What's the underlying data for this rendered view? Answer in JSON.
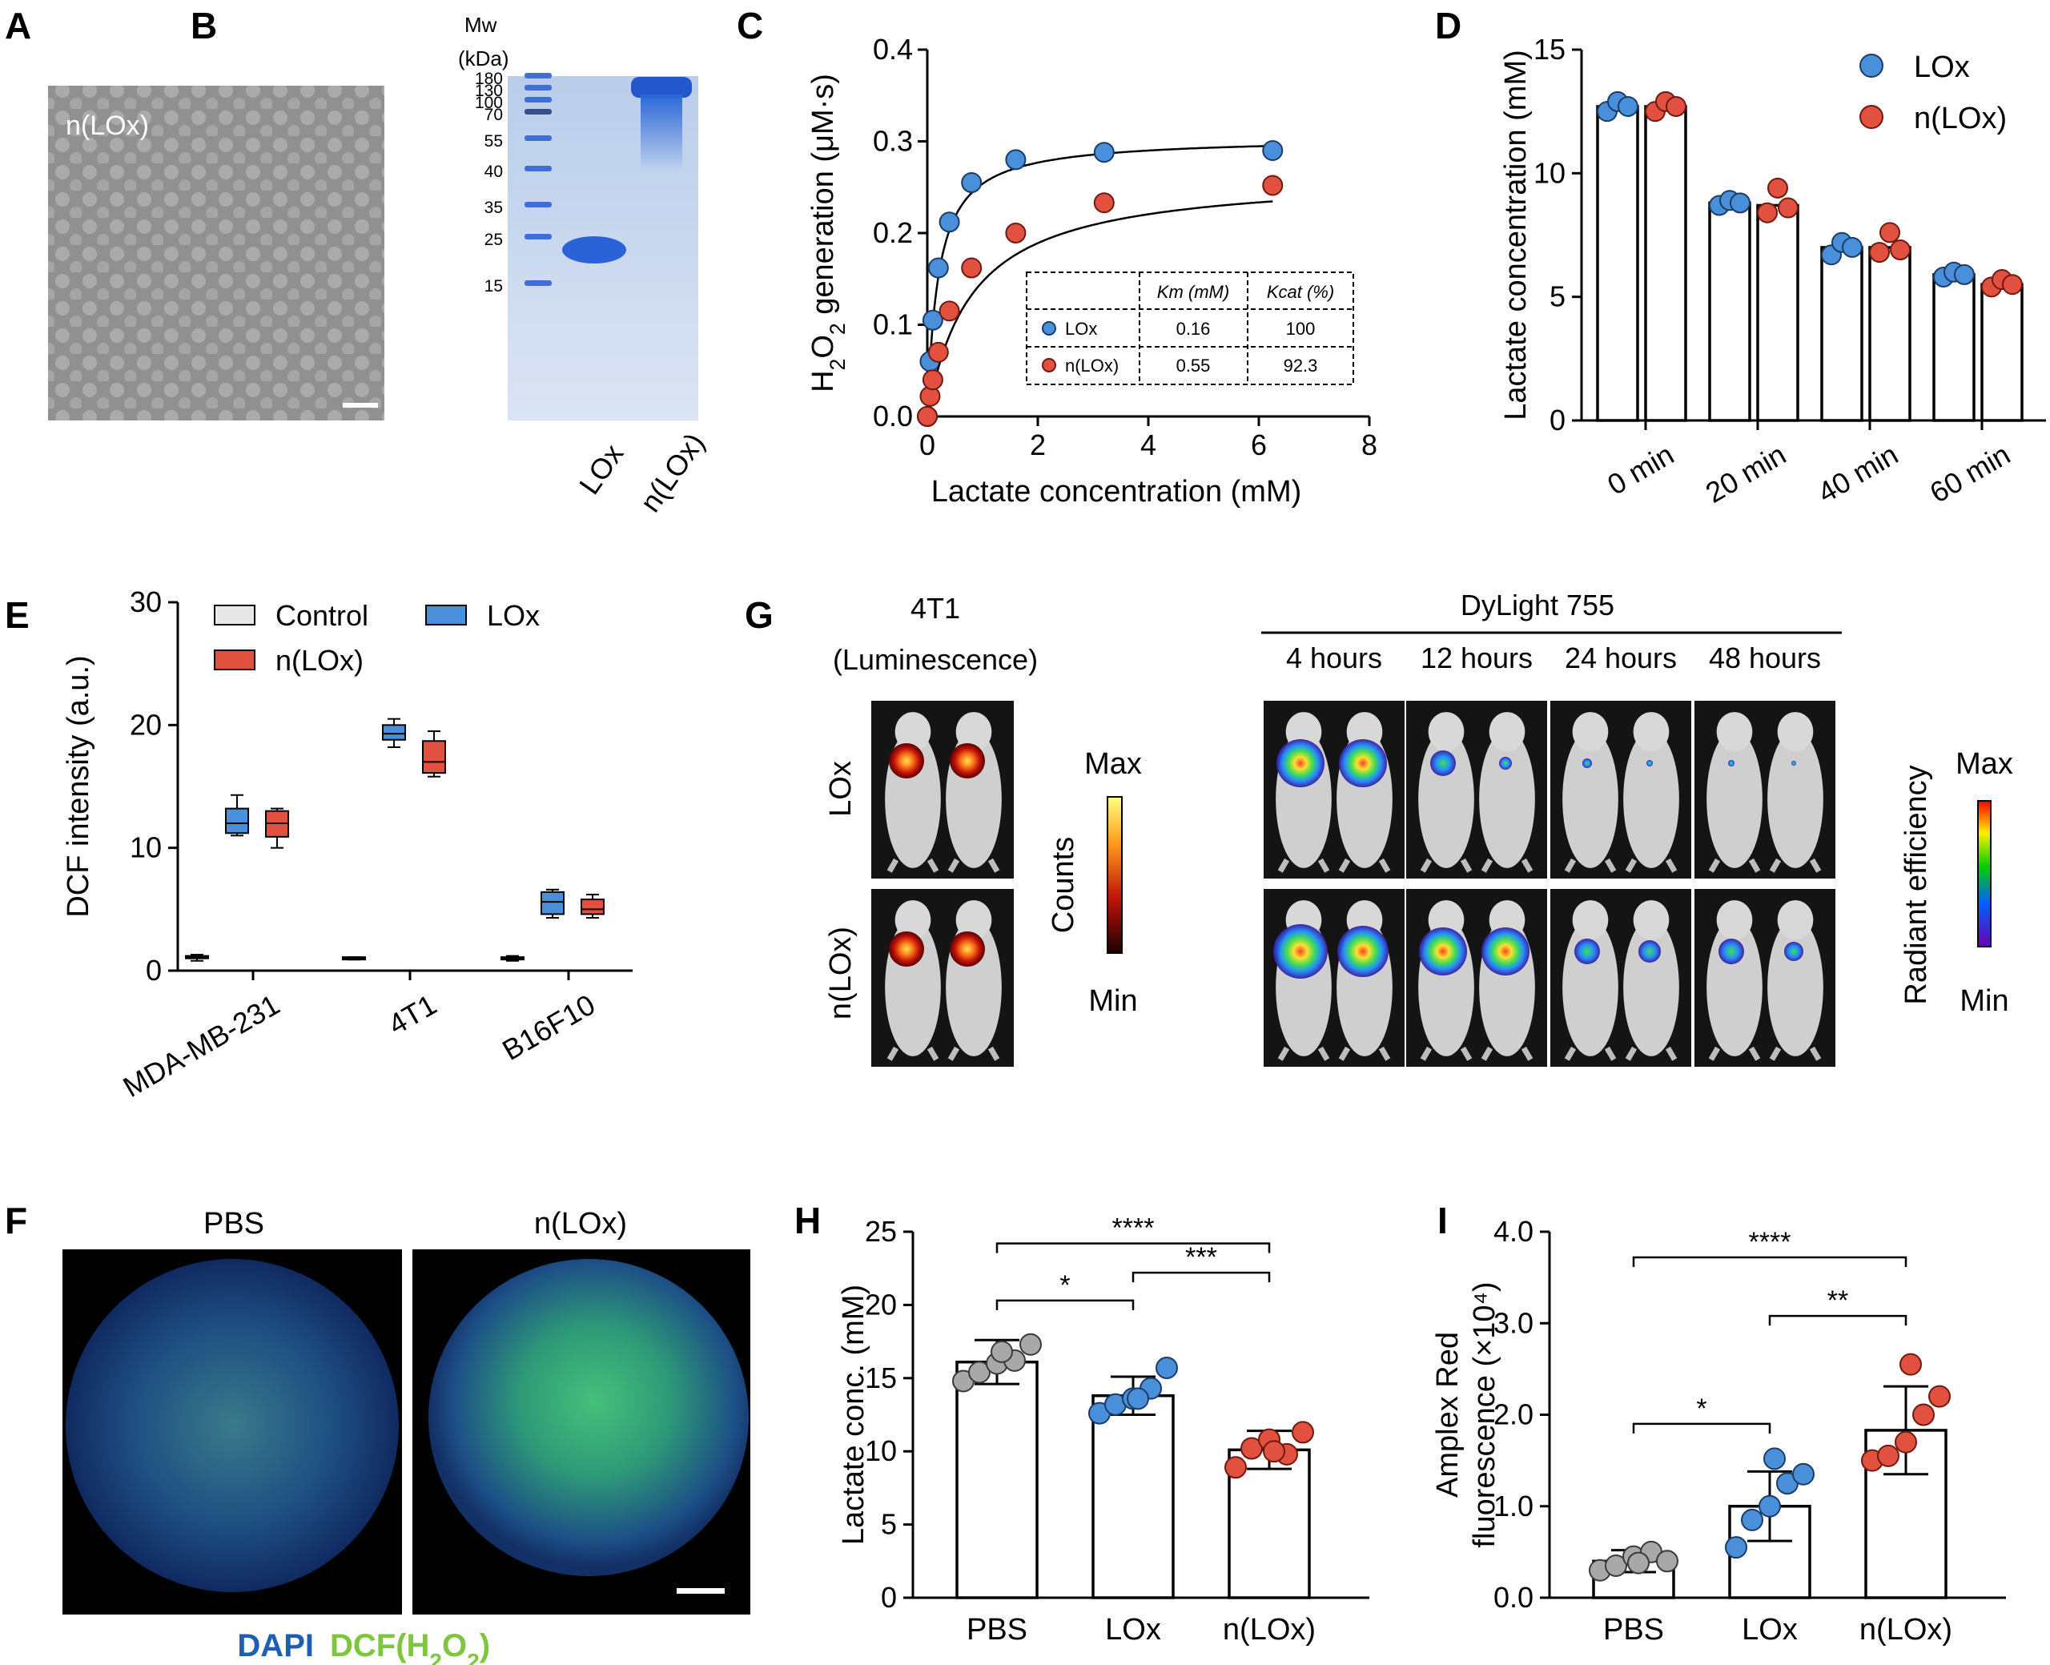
{
  "panels": {
    "A": {
      "letter": "A",
      "label": "n(LOx)"
    },
    "B": {
      "letter": "B",
      "header_line1": "Mw",
      "header_line2": "(kDa)",
      "markers": [
        "180",
        "130",
        "100",
        "70",
        "55",
        "40",
        "35",
        "25",
        "15"
      ],
      "lanes": [
        "LOx",
        "n(LOx)"
      ]
    },
    "C": {
      "letter": "C",
      "table": {
        "header_km": "Km (mM)",
        "header_kcat": "Kcat (%)",
        "rows": [
          {
            "name": "LOx",
            "km": "0.16",
            "kcat": "100"
          },
          {
            "name": "n(LOx)",
            "km": "0.55",
            "kcat": "92.3"
          }
        ]
      }
    },
    "D": {
      "letter": "D"
    },
    "E": {
      "letter": "E"
    },
    "F": {
      "letter": "F",
      "left_label": "PBS",
      "right_label": "n(LOx)",
      "stain_dapi": "DAPI",
      "stain_dcf": "DCF(H2O2)"
    },
    "G": {
      "letter": "G",
      "lum_title1": "4T1",
      "lum_title2": "(Luminescence)",
      "dye_title": "DyLight 755",
      "timepoints": [
        "4 hours",
        "12 hours",
        "24 hours",
        "48 hours"
      ],
      "rows": [
        "LOx",
        "n(LOx)"
      ],
      "counts_label": "Counts",
      "radiant_label": "Radiant efficiency",
      "max": "Max",
      "min": "Min"
    },
    "H": {
      "letter": "H"
    },
    "I": {
      "letter": "I"
    }
  },
  "colors": {
    "lox": "#4a8fd9",
    "nlox": "#e2513f",
    "control": "#e8e8e8",
    "pbs": "#a8a8a8"
  },
  "chart_data": [
    {
      "id": "C",
      "type": "scatter",
      "xlabel": "Lactate concentration (mM)",
      "ylabel": "H2O2 generation (μM·s)",
      "xlim": [
        0,
        8
      ],
      "ylim": [
        0,
        0.4
      ],
      "xticks": [
        "0",
        "2",
        "4",
        "6",
        "8"
      ],
      "yticks": [
        "0.0",
        "0.1",
        "0.2",
        "0.3",
        "0.4"
      ],
      "series": [
        {
          "name": "LOx",
          "color": "#4a8fd9",
          "x": [
            0,
            0.05,
            0.1,
            0.2,
            0.4,
            0.8,
            1.6,
            3.2,
            6.25
          ],
          "y": [
            0.0,
            0.06,
            0.105,
            0.162,
            0.212,
            0.255,
            0.28,
            0.288,
            0.29
          ]
        },
        {
          "name": "n(LOx)",
          "color": "#e2513f",
          "x": [
            0,
            0.05,
            0.1,
            0.2,
            0.4,
            0.8,
            1.6,
            3.2,
            6.25
          ],
          "y": [
            0.0,
            0.022,
            0.04,
            0.07,
            0.115,
            0.162,
            0.2,
            0.233,
            0.252
          ]
        }
      ]
    },
    {
      "id": "D",
      "type": "bar",
      "ylabel": "Lactate concentration (mM)",
      "ylim": [
        0,
        15
      ],
      "yticks": [
        "0",
        "5",
        "10",
        "15"
      ],
      "categories": [
        "0 min",
        "20 min",
        "40 min",
        "60 min"
      ],
      "legend": [
        {
          "name": "LOx",
          "color": "#4a8fd9"
        },
        {
          "name": "n(LOx)",
          "color": "#e2513f"
        }
      ],
      "series": [
        {
          "name": "LOx",
          "values": [
            12.7,
            8.8,
            7.0,
            5.9
          ],
          "points": [
            [
              12.5,
              12.9,
              12.7
            ],
            [
              8.7,
              8.9,
              8.8
            ],
            [
              6.7,
              7.2,
              7.0
            ],
            [
              5.8,
              6.0,
              5.9
            ]
          ]
        },
        {
          "name": "n(LOx)",
          "values": [
            12.7,
            8.7,
            7.0,
            5.5
          ],
          "points": [
            [
              12.5,
              12.9,
              12.7
            ],
            [
              8.4,
              9.4,
              8.6
            ],
            [
              6.8,
              7.6,
              6.9
            ],
            [
              5.4,
              5.7,
              5.5
            ]
          ]
        }
      ]
    },
    {
      "id": "E",
      "type": "box",
      "ylabel": "DCF intensity (a.u.)",
      "ylim": [
        0,
        30
      ],
      "yticks": [
        "0",
        "10",
        "20",
        "30"
      ],
      "categories": [
        "MDA-MB-231",
        "4T1",
        "B16F10"
      ],
      "legend": [
        {
          "name": "Control",
          "color": "#e8e8e8"
        },
        {
          "name": "LOx",
          "color": "#4a8fd9"
        },
        {
          "name": "n(LOx)",
          "color": "#e2513f"
        }
      ],
      "series": [
        {
          "name": "Control",
          "boxes": [
            [
              0.8,
              1.0,
              1.1,
              1.2,
              1.3
            ],
            [
              0.9,
              1.0,
              1.0,
              1.1,
              1.1
            ],
            [
              0.8,
              0.95,
              1.0,
              1.1,
              1.2
            ]
          ]
        },
        {
          "name": "LOx",
          "boxes": [
            [
              11.0,
              11.2,
              12.0,
              13.2,
              14.3
            ],
            [
              18.2,
              18.8,
              19.3,
              20.0,
              20.5
            ],
            [
              4.3,
              4.6,
              5.6,
              6.4,
              6.6
            ]
          ]
        },
        {
          "name": "n(LOx)",
          "boxes": [
            [
              10.0,
              10.9,
              12.0,
              13.0,
              13.2
            ],
            [
              15.8,
              16.1,
              17.0,
              18.7,
              19.5
            ],
            [
              4.3,
              4.6,
              5.0,
              5.8,
              6.2
            ]
          ]
        }
      ]
    },
    {
      "id": "H",
      "type": "bar",
      "ylabel": "Lactate conc. (mM)",
      "ylim": [
        0,
        25
      ],
      "yticks": [
        "0",
        "5",
        "10",
        "15",
        "20",
        "25"
      ],
      "categories": [
        "PBS",
        "LOx",
        "n(LOx)"
      ],
      "values": [
        16.1,
        13.8,
        10.1
      ],
      "sd": [
        1.5,
        1.3,
        1.3
      ],
      "points": [
        [
          14.8,
          15.4,
          16.0,
          16.2,
          17.3,
          16.8
        ],
        [
          12.6,
          13.2,
          13.6,
          14.3,
          15.7,
          13.6
        ],
        [
          8.9,
          10.2,
          10.8,
          9.8,
          11.3,
          10.0
        ]
      ],
      "significance": [
        {
          "from": 0,
          "to": 2,
          "label": "****",
          "y": 24.2
        },
        {
          "from": 0,
          "to": 1,
          "label": "*",
          "y": 20.3
        },
        {
          "from": 1,
          "to": 2,
          "label": "***",
          "y": 22.2
        }
      ]
    },
    {
      "id": "I",
      "type": "bar",
      "ylabel_line1": "Amplex Red",
      "ylabel_line2": "fluorescence (×10⁴)",
      "ylim": [
        0,
        4
      ],
      "yticks": [
        "0.0",
        "1.0",
        "2.0",
        "3.0",
        "4.0"
      ],
      "categories": [
        "PBS",
        "LOx",
        "n(LOx)"
      ],
      "values": [
        0.4,
        1.0,
        1.83
      ],
      "sd": [
        0.12,
        0.38,
        0.48
      ],
      "points": [
        [
          0.3,
          0.35,
          0.45,
          0.5,
          0.4,
          0.38
        ],
        [
          0.55,
          0.85,
          1.0,
          1.25,
          1.35,
          1.52
        ],
        [
          1.5,
          1.55,
          1.7,
          2.0,
          2.2,
          2.55
        ]
      ],
      "significance": [
        {
          "from": 0,
          "to": 2,
          "label": "****",
          "y": 3.72
        },
        {
          "from": 0,
          "to": 1,
          "label": "*",
          "y": 1.9
        },
        {
          "from": 1,
          "to": 2,
          "label": "**",
          "y": 3.08
        }
      ]
    }
  ]
}
